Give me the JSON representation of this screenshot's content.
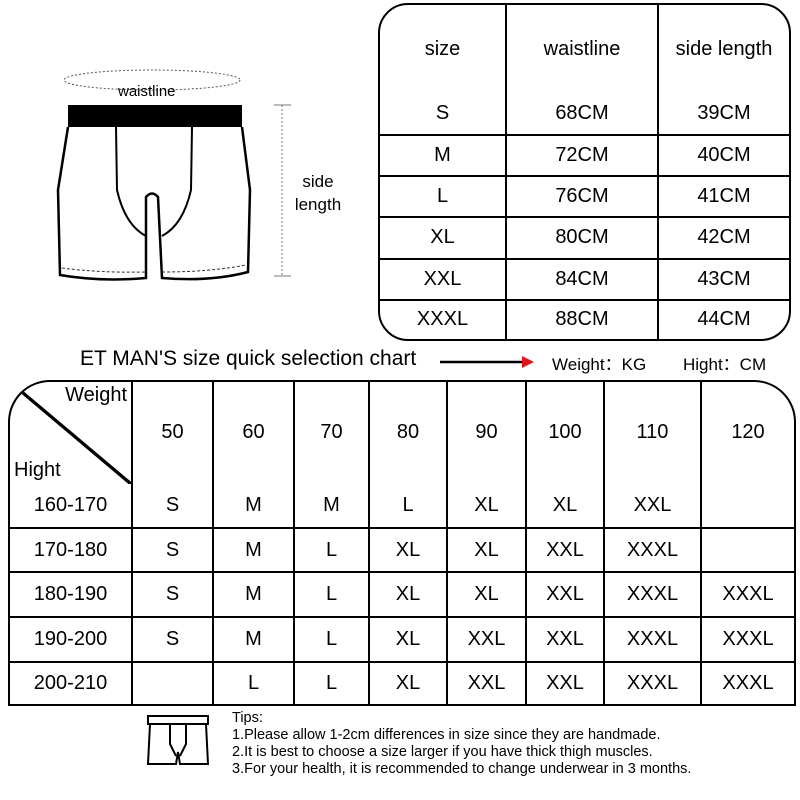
{
  "diagram": {
    "waistline_label": "waistline",
    "side_label_1": "side",
    "side_label_2": "length"
  },
  "measure_table": {
    "headers": [
      "size",
      "waistline",
      "side length"
    ],
    "rows": [
      [
        "S",
        "68CM",
        "39CM"
      ],
      [
        "M",
        "72CM",
        "40CM"
      ],
      [
        "L",
        "76CM",
        "41CM"
      ],
      [
        "XL",
        "80CM",
        "42CM"
      ],
      [
        "XXL",
        "84CM",
        "43CM"
      ],
      [
        "XXXL",
        "88CM",
        "44CM"
      ]
    ]
  },
  "caption": "ET MAN'S size quick selection chart",
  "units": {
    "weight": "Weight：KG",
    "height": "Hight：CM"
  },
  "arrow_color": "#e0161b",
  "selection_table": {
    "corner_weight": "Weight",
    "corner_height": "Hight",
    "weights": [
      "50",
      "60",
      "70",
      "80",
      "90",
      "100",
      "110",
      "120"
    ],
    "rows": [
      {
        "height": "160-170",
        "sizes": [
          "S",
          "M",
          "M",
          "L",
          "XL",
          "XL",
          "XXL",
          ""
        ]
      },
      {
        "height": "170-180",
        "sizes": [
          "S",
          "M",
          "L",
          "XL",
          "XL",
          "XXL",
          "XXXL",
          ""
        ]
      },
      {
        "height": "180-190",
        "sizes": [
          "S",
          "M",
          "L",
          "XL",
          "XL",
          "XXL",
          "XXXL",
          "XXXL"
        ]
      },
      {
        "height": "190-200",
        "sizes": [
          "S",
          "M",
          "L",
          "XL",
          "XXL",
          "XXL",
          "XXXL",
          "XXXL"
        ]
      },
      {
        "height": "200-210",
        "sizes": [
          "",
          "L",
          "L",
          "XL",
          "XXL",
          "XXL",
          "XXXL",
          "XXXL"
        ]
      }
    ]
  },
  "tips": {
    "title": "Tips:",
    "items": [
      "1.Please allow 1-2cm differences in size since they are handmade.",
      "2.It is best to choose a size larger if you have thick thigh muscles.",
      "3.For your health, it is recommended to change underwear in 3 months."
    ]
  }
}
